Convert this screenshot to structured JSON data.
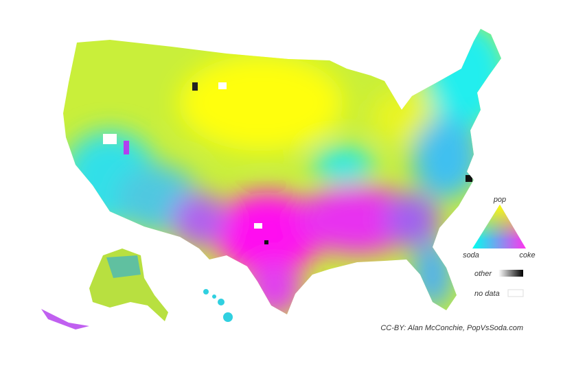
{
  "legend": {
    "triangle": {
      "top": "pop",
      "left": "soda",
      "right": "coke"
    },
    "other": "other",
    "no_data": "no data"
  },
  "credit": "CC-BY: Alan McConchie, PopVsSoda.com"
}
